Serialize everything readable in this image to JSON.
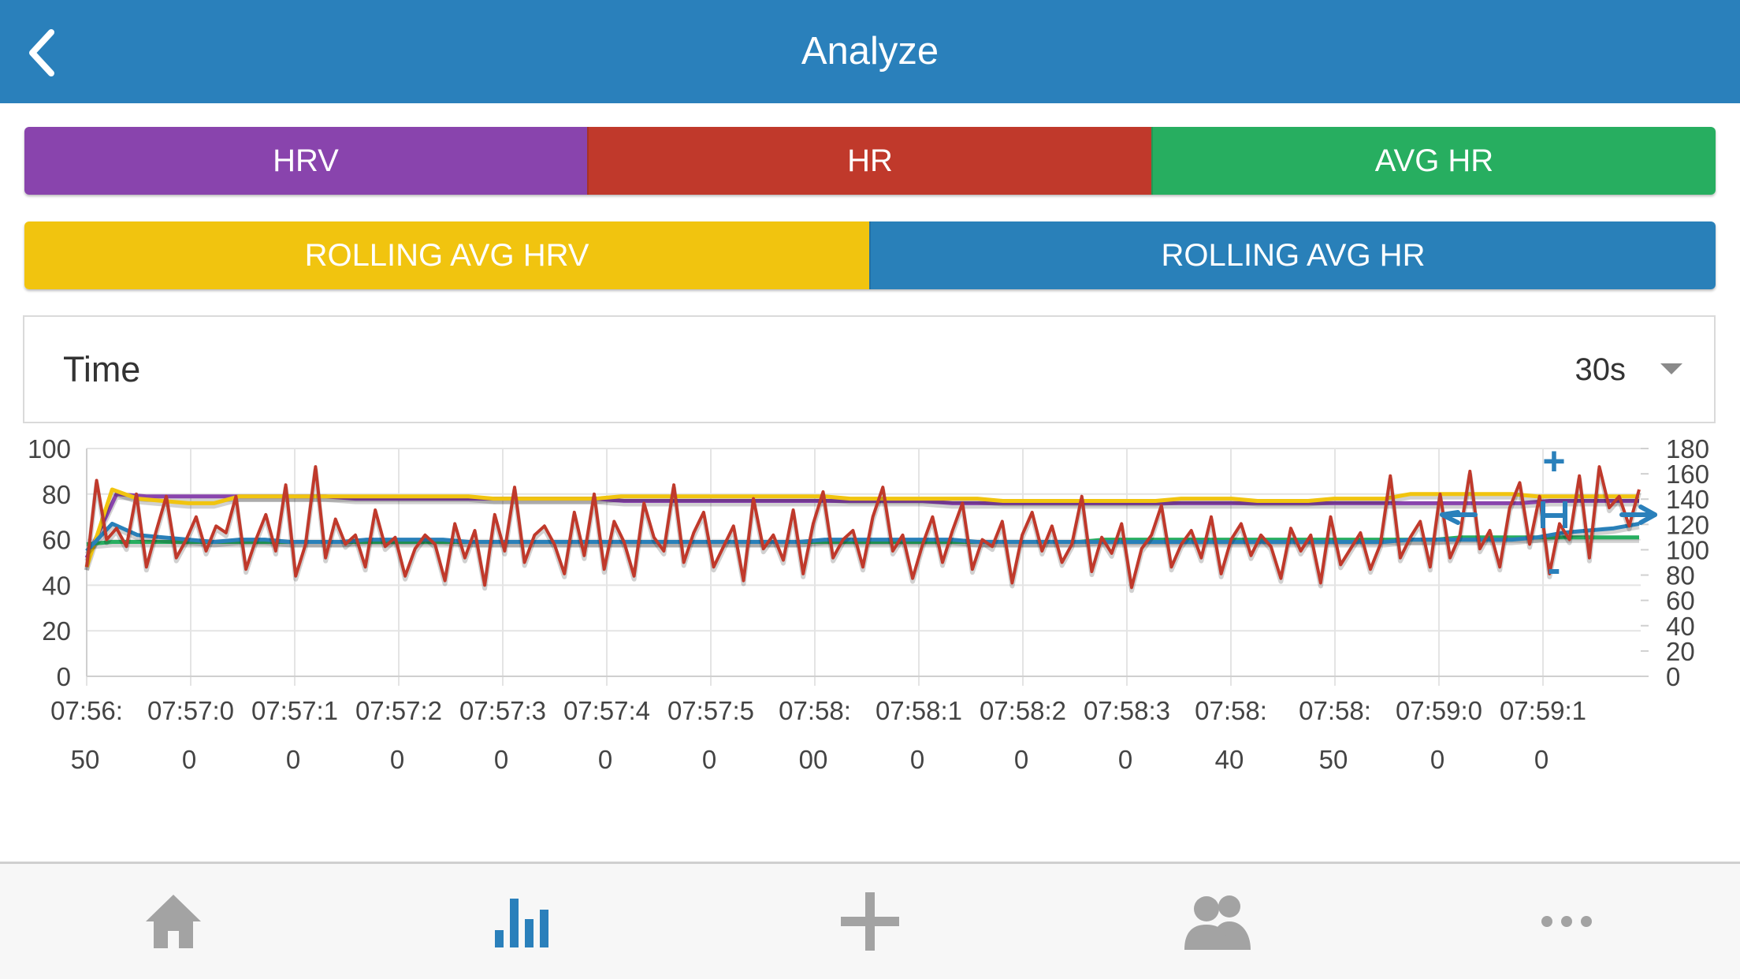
{
  "header": {
    "title": "Analyze",
    "back_icon": "chevron-left-icon"
  },
  "toggles_row1": [
    {
      "label": "HRV",
      "color": "#8944ad"
    },
    {
      "label": "HR",
      "color": "#c0392b"
    },
    {
      "label": "AVG HR",
      "color": "#27ae60"
    }
  ],
  "toggles_row2": [
    {
      "label": "ROLLING AVG HRV",
      "color": "#f1c40f"
    },
    {
      "label": "ROLLING AVG HR",
      "color": "#2980b9"
    }
  ],
  "time_filter": {
    "label": "Time",
    "value": "30s",
    "icon": "dropdown-arrow-icon"
  },
  "chart_data": {
    "type": "line",
    "x_tick_labels": [
      [
        "07:56:",
        "50"
      ],
      [
        "07:57:0",
        "0"
      ],
      [
        "07:57:1",
        "0"
      ],
      [
        "07:57:2",
        "0"
      ],
      [
        "07:57:3",
        "0"
      ],
      [
        "07:57:4",
        "0"
      ],
      [
        "07:57:5",
        "0"
      ],
      [
        "07:58:",
        "00"
      ],
      [
        "07:58:1",
        "0"
      ],
      [
        "07:58:2",
        "0"
      ],
      [
        "07:58:3",
        "0"
      ],
      [
        "07:58:",
        "40"
      ],
      [
        "07:58:",
        "50"
      ],
      [
        "07:59:0",
        "0"
      ],
      [
        "07:59:1",
        "0"
      ]
    ],
    "y_left": {
      "ticks": [
        0,
        20,
        40,
        60,
        80,
        100
      ],
      "range": [
        0,
        100
      ]
    },
    "y_right": {
      "ticks": [
        0,
        20,
        40,
        60,
        80,
        100,
        120,
        140,
        160,
        180
      ],
      "range": [
        0,
        180
      ]
    },
    "grid": true,
    "zoom_controls": {
      "zoom_in": "+",
      "zoom_out": "-"
    },
    "series": [
      {
        "color": "#8944ad",
        "axis": "left",
        "values": [
          52,
          80,
          79,
          79,
          79,
          79,
          79,
          79,
          79,
          78,
          78,
          78,
          78,
          78,
          78,
          78,
          78,
          78,
          77,
          77,
          77,
          77,
          77,
          77,
          77,
          77,
          77,
          77,
          77,
          76,
          76,
          76,
          76,
          76,
          76,
          76,
          76,
          76,
          76,
          76,
          76,
          76,
          76,
          76,
          76,
          76,
          76,
          76,
          76,
          77,
          77,
          77,
          77
        ]
      },
      {
        "color": "#c0392b",
        "axis": "left",
        "values": [
          48,
          86,
          60,
          65,
          57,
          80,
          48,
          64,
          79,
          52,
          60,
          70,
          55,
          66,
          63,
          79,
          47,
          60,
          71,
          55,
          84,
          44,
          58,
          92,
          52,
          69,
          58,
          62,
          48,
          73,
          57,
          61,
          44,
          56,
          62,
          58,
          42,
          67,
          52,
          64,
          40,
          71,
          55,
          83,
          50,
          62,
          66,
          58,
          45,
          72,
          53,
          80,
          47,
          68,
          59,
          44,
          76,
          61,
          55,
          84,
          50,
          63,
          72,
          48,
          57,
          66,
          42,
          78,
          56,
          62,
          51,
          73,
          45,
          67,
          81,
          52,
          60,
          64,
          48,
          70,
          83,
          55,
          62,
          43,
          58,
          70,
          50,
          64,
          76,
          47,
          60,
          57,
          68,
          41,
          62,
          72,
          55,
          66,
          50,
          58,
          79,
          46,
          61,
          54,
          67,
          39,
          56,
          62,
          75,
          48,
          58,
          64,
          52,
          70,
          45,
          60,
          67,
          53,
          62,
          57,
          43,
          65,
          55,
          62,
          41,
          70,
          49,
          56,
          63,
          47,
          58,
          88,
          52,
          61,
          68,
          48,
          80,
          52,
          62,
          90,
          56,
          64,
          48,
          74,
          85,
          58,
          79,
          45,
          67,
          60,
          88,
          52,
          92,
          74,
          79,
          66,
          82
        ]
      },
      {
        "color": "#27ae60",
        "axis": "left",
        "values": [
          58,
          59,
          59,
          59,
          59,
          59,
          59,
          59,
          59,
          59,
          59,
          59,
          59,
          59,
          59,
          59,
          59,
          59,
          59,
          59,
          59,
          59,
          59,
          59,
          59,
          59,
          59,
          59,
          59,
          59,
          59,
          59,
          59,
          59,
          59,
          59,
          59,
          59,
          59,
          59,
          60,
          60,
          60,
          60,
          60,
          60,
          60,
          60,
          60,
          60,
          60,
          60,
          60,
          60,
          61,
          61,
          61,
          61,
          61,
          61,
          61,
          61
        ]
      },
      {
        "color": "#f1c40f",
        "axis": "left",
        "values": [
          48,
          82,
          78,
          77,
          76,
          76,
          79,
          79,
          79,
          79,
          79,
          79,
          79,
          79,
          79,
          79,
          78,
          78,
          78,
          78,
          78,
          79,
          79,
          79,
          79,
          79,
          79,
          79,
          79,
          79,
          78,
          78,
          78,
          78,
          78,
          78,
          77,
          77,
          77,
          77,
          77,
          77,
          77,
          78,
          78,
          78,
          77,
          77,
          77,
          78,
          78,
          78,
          80,
          80,
          80,
          80,
          80,
          79,
          79,
          79,
          79,
          79
        ]
      },
      {
        "color": "#2980b9",
        "axis": "left",
        "values": [
          55,
          67,
          62,
          61,
          60,
          59,
          60,
          60,
          59,
          59,
          59,
          60,
          60,
          60,
          60,
          59,
          59,
          59,
          59,
          59,
          59,
          59,
          59,
          59,
          59,
          59,
          59,
          59,
          59,
          60,
          60,
          60,
          60,
          60,
          60,
          59,
          59,
          59,
          59,
          59,
          59,
          59,
          59,
          59,
          59,
          59,
          59,
          59,
          59,
          59,
          59,
          59,
          60,
          60,
          60,
          60,
          60,
          61,
          63,
          64,
          65,
          67
        ]
      }
    ]
  },
  "tabbar": {
    "items": [
      {
        "name": "tab-home",
        "icon": "home-icon",
        "active": false
      },
      {
        "name": "tab-analyze",
        "icon": "bar-chart-icon",
        "active": true
      },
      {
        "name": "tab-add",
        "icon": "plus-icon",
        "active": false
      },
      {
        "name": "tab-community",
        "icon": "users-icon",
        "active": false
      },
      {
        "name": "tab-more",
        "icon": "more-icon",
        "active": false
      }
    ],
    "active_color": "#2a80bb",
    "inactive_color": "#a3a3a3"
  }
}
